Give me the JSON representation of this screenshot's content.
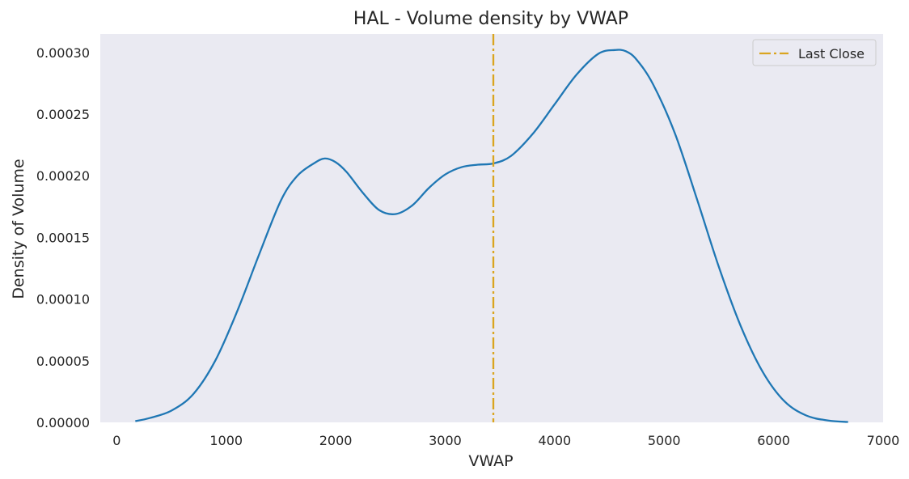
{
  "chart_data": {
    "type": "line",
    "title": "HAL - Volume density by VWAP",
    "xlabel": "VWAP",
    "ylabel": "Density of Volume",
    "xlim": [
      -150,
      7000
    ],
    "ylim": [
      0,
      0.000315
    ],
    "xticks": [
      0,
      1000,
      2000,
      3000,
      4000,
      5000,
      6000,
      7000
    ],
    "xtick_labels": [
      "0",
      "1000",
      "2000",
      "3000",
      "4000",
      "5000",
      "6000",
      "7000"
    ],
    "yticks": [
      0,
      5e-05,
      0.0001,
      0.00015,
      0.0002,
      0.00025,
      0.0003
    ],
    "ytick_labels": [
      "0.00000",
      "0.00005",
      "0.00010",
      "0.00015",
      "0.00020",
      "0.00025",
      "0.00030"
    ],
    "grid": false,
    "legend_position": "top-right",
    "series": [
      {
        "color": "#1f77b4",
        "x": [
          170,
          300,
          500,
          700,
          900,
          1100,
          1300,
          1500,
          1650,
          1800,
          1900,
          2000,
          2100,
          2250,
          2400,
          2550,
          2700,
          2850,
          3000,
          3150,
          3300,
          3440,
          3600,
          3800,
          4000,
          4200,
          4400,
          4550,
          4650,
          4750,
          4900,
          5100,
          5300,
          5500,
          5700,
          5900,
          6100,
          6300,
          6500,
          6680
        ],
        "y": [
          1e-06,
          3.5e-06,
          9.5e-06,
          2.3e-05,
          5e-05,
          9e-05,
          0.000136,
          0.00018,
          0.0002,
          0.00021,
          0.000214,
          0.000211,
          0.000203,
          0.000186,
          0.000172,
          0.000169,
          0.000176,
          0.00019,
          0.000201,
          0.000207,
          0.000209,
          0.00021,
          0.000216,
          0.000234,
          0.000258,
          0.000282,
          0.000299,
          0.000302,
          0.000301,
          0.000294,
          0.000274,
          0.000234,
          0.000181,
          0.000126,
          7.8e-05,
          4.1e-05,
          1.7e-05,
          5.5e-06,
          1.5e-06,
          3e-07
        ]
      }
    ],
    "vlines": [
      {
        "name": "Last Close",
        "x": 3440,
        "color": "#DAA520",
        "style": "dashdot"
      }
    ],
    "legend": [
      {
        "label": "Last Close",
        "color": "#DAA520",
        "style": "dashdot"
      }
    ],
    "colors": {
      "plot_background": "#eaeaf2",
      "series": "#1f77b4",
      "last_close": "#DAA520"
    }
  }
}
